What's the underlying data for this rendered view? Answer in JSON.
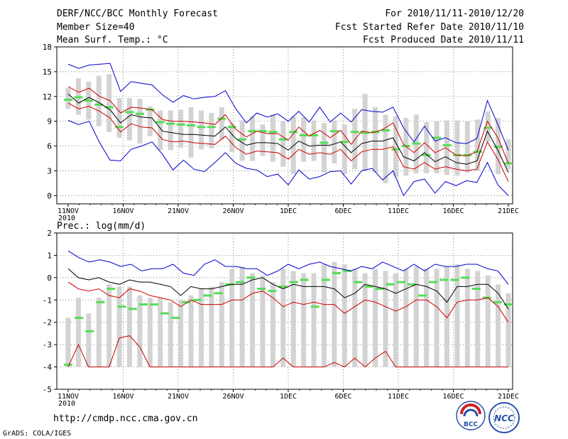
{
  "header": {
    "title": "DERF/NCC/BCC Monthly Forecast",
    "member_size": "Member Size=40",
    "variable": "Mean Surf. Temp.: °C",
    "period": "For 2010/11/11-2010/12/20",
    "start_date": "Fcst Started Refer Date 2010/11/10",
    "produced_date": "Fcst Produced Date 2010/11/11"
  },
  "footer": {
    "url": "http://cmdp.ncc.cma.gov.cn",
    "credit": "GrADS: COLA/IGES",
    "logo_bcc": "BCC",
    "logo_ncc": "NCC"
  },
  "colors": {
    "max_line": "#0000cc",
    "min_line": "#0000cc",
    "mean_line": "#000000",
    "band_line": "#cc0000",
    "climatology_mark": "#55dd55",
    "range_bar": "#d3d3d3"
  },
  "chart_data": [
    {
      "type": "line",
      "title": "Mean Surf. Temp.: °C",
      "x_start": "2010-11-11",
      "x_ticks": [
        "11NOV",
        "16NOV",
        "21NOV",
        "26NOV",
        "1DEC",
        "6DEC",
        "11DEC",
        "16DEC",
        "21DEC"
      ],
      "x_tick_sub": "2010",
      "ylim": [
        -1,
        18
      ],
      "y_ticks": [
        "0",
        "3",
        "6",
        "9",
        "12",
        "15",
        "18"
      ],
      "grid": true,
      "series": [
        {
          "name": "max",
          "color": "#0000cc",
          "values": [
            15.9,
            15.4,
            15.8,
            15.9,
            16.0,
            12.6,
            13.8,
            13.6,
            13.4,
            12.2,
            11.3,
            12.1,
            11.7,
            11.9,
            12.0,
            12.7,
            10.5,
            8.8,
            10.0,
            9.5,
            9.9,
            9.0,
            10.2,
            8.9,
            10.7,
            8.9,
            10.0,
            8.9,
            10.4,
            10.2,
            10.1,
            10.7,
            8.2,
            6.5,
            8.4,
            6.6,
            7.0,
            6.4,
            6.3,
            6.9,
            11.5,
            8.6,
            5.5
          ]
        },
        {
          "name": "upper",
          "color": "#cc0000",
          "values": [
            13.2,
            12.5,
            13.0,
            12.0,
            11.5,
            10.0,
            10.7,
            10.6,
            10.4,
            9.2,
            9.0,
            9.0,
            8.9,
            8.8,
            8.6,
            9.8,
            8.0,
            7.1,
            7.8,
            7.5,
            7.5,
            6.7,
            8.3,
            7.2,
            7.9,
            7.0,
            7.9,
            6.2,
            7.8,
            7.6,
            8.0,
            8.8,
            6.2,
            5.2,
            6.4,
            5.2,
            5.8,
            4.9,
            4.8,
            5.3,
            9.0,
            7.0,
            3.9
          ]
        },
        {
          "name": "mean",
          "color": "#000000",
          "values": [
            12.3,
            11.2,
            11.9,
            11.2,
            10.4,
            8.8,
            9.8,
            9.5,
            9.4,
            7.8,
            7.6,
            7.4,
            7.4,
            7.3,
            7.2,
            8.3,
            6.9,
            6.1,
            6.4,
            6.4,
            6.3,
            5.5,
            6.6,
            6.0,
            6.1,
            6.1,
            6.5,
            5.2,
            6.3,
            6.6,
            6.6,
            7.0,
            4.7,
            4.2,
            5.2,
            4.1,
            4.7,
            4.0,
            3.8,
            4.2,
            7.8,
            5.5,
            2.8
          ]
        },
        {
          "name": "lower",
          "color": "#cc0000",
          "values": [
            11.2,
            10.5,
            10.8,
            10.2,
            9.4,
            7.7,
            8.7,
            8.3,
            8.2,
            6.8,
            6.5,
            6.6,
            6.4,
            6.3,
            6.2,
            7.2,
            5.8,
            5.0,
            5.4,
            5.3,
            5.2,
            4.4,
            5.6,
            5.0,
            5.2,
            5.0,
            5.6,
            4.2,
            5.3,
            5.6,
            5.6,
            5.9,
            3.5,
            3.2,
            4.0,
            3.2,
            3.5,
            3.2,
            3.0,
            3.2,
            6.5,
            4.4,
            1.7
          ]
        },
        {
          "name": "min",
          "color": "#0000cc",
          "values": [
            9.1,
            8.6,
            9.0,
            6.4,
            4.3,
            4.2,
            5.6,
            6.0,
            6.5,
            5.0,
            3.1,
            4.3,
            3.2,
            2.9,
            4.0,
            5.2,
            3.9,
            3.3,
            3.1,
            2.3,
            2.6,
            1.3,
            3.1,
            2.0,
            2.3,
            2.9,
            3.0,
            1.4,
            3.0,
            3.3,
            1.9,
            3.0,
            0.0,
            1.7,
            2.0,
            0.3,
            1.7,
            1.2,
            1.8,
            1.6,
            4.0,
            1.3,
            0.0
          ]
        }
      ],
      "climatology": [
        11.6,
        11.9,
        11.5,
        11.0,
        10.7,
        8.3,
        10.1,
        9.9,
        10.4,
        8.9,
        8.7,
        8.6,
        8.5,
        8.3,
        8.3,
        9.3,
        8.3,
        6.8,
        7.8,
        7.8,
        7.7,
        6.8,
        7.7,
        7.3,
        7.3,
        6.4,
        7.8,
        6.5,
        7.7,
        7.6,
        7.7,
        7.9,
        5.6,
        6.0,
        6.3,
        4.9,
        7.0,
        6.1,
        4.9,
        4.9,
        5.3,
        8.2,
        5.9,
        3.9
      ],
      "range_bars": [
        [
          10.5,
          13.0
        ],
        [
          9.8,
          14.2
        ],
        [
          9.2,
          13.8
        ],
        [
          8.4,
          14.5
        ],
        [
          7.7,
          14.7
        ],
        [
          7.0,
          11.8
        ],
        [
          6.7,
          11.8
        ],
        [
          6.3,
          11.7
        ],
        [
          7.2,
          10.8
        ],
        [
          5.5,
          10.3
        ],
        [
          5.5,
          10.3
        ],
        [
          5.8,
          10.4
        ],
        [
          4.6,
          10.7
        ],
        [
          5.6,
          10.3
        ],
        [
          5.7,
          10.0
        ],
        [
          6.8,
          10.7
        ],
        [
          5.3,
          8.8
        ],
        [
          4.2,
          9.1
        ],
        [
          4.2,
          9.6
        ],
        [
          4.8,
          8.6
        ],
        [
          4.1,
          9.8
        ],
        [
          3.5,
          9.0
        ],
        [
          2.6,
          9.6
        ],
        [
          4.1,
          9.5
        ],
        [
          4.2,
          9.1
        ],
        [
          2.8,
          8.8
        ],
        [
          3.9,
          9.1
        ],
        [
          2.6,
          8.6
        ],
        [
          3.2,
          10.5
        ],
        [
          3.0,
          12.3
        ],
        [
          2.8,
          10.7
        ],
        [
          1.5,
          9.8
        ],
        [
          2.3,
          9.6
        ],
        [
          2.4,
          9.4
        ],
        [
          2.7,
          9.8
        ],
        [
          2.7,
          8.9
        ],
        [
          2.7,
          9.0
        ],
        [
          2.5,
          9.1
        ],
        [
          2.4,
          9.1
        ],
        [
          2.8,
          9.0
        ],
        [
          3.0,
          9.2
        ],
        [
          6.5,
          10.2
        ],
        [
          2.6,
          9.4
        ],
        [
          3.2,
          6.8
        ]
      ]
    },
    {
      "type": "line",
      "title": "Prec.: log(mm/d)",
      "x_start": "2010-11-11",
      "x_ticks": [
        "11NOV",
        "16NOV",
        "21NOV",
        "26NOV",
        "1DEC",
        "6DEC",
        "11DEC",
        "16DEC",
        "21DEC"
      ],
      "x_tick_sub": "2010",
      "ylim": [
        -5,
        2
      ],
      "y_ticks": [
        "-5",
        "-4",
        "-3",
        "-2",
        "-1",
        "0",
        "1",
        "2"
      ],
      "grid": true,
      "series": [
        {
          "name": "max",
          "color": "#0000cc",
          "values": [
            1.2,
            0.9,
            0.7,
            0.8,
            0.7,
            0.5,
            0.6,
            0.3,
            0.4,
            0.4,
            0.6,
            0.2,
            0.1,
            0.6,
            0.8,
            0.5,
            0.5,
            0.4,
            0.4,
            0.1,
            0.3,
            0.6,
            0.4,
            0.6,
            0.7,
            0.5,
            0.4,
            0.3,
            0.5,
            0.4,
            0.7,
            0.5,
            0.3,
            0.6,
            0.3,
            0.6,
            0.5,
            0.5,
            0.6,
            0.6,
            0.4,
            0.3,
            -0.3
          ]
        },
        {
          "name": "mean",
          "color": "#000000",
          "values": [
            0.4,
            0.0,
            -0.1,
            0.0,
            -0.2,
            -0.3,
            -0.1,
            -0.2,
            -0.2,
            -0.3,
            -0.4,
            -0.8,
            -0.4,
            -0.5,
            -0.5,
            -0.4,
            -0.3,
            -0.3,
            -0.1,
            0.0,
            -0.3,
            -0.5,
            -0.3,
            -0.4,
            -0.4,
            -0.4,
            -0.5,
            -0.9,
            -0.7,
            -0.3,
            -0.4,
            -0.5,
            -0.7,
            -0.5,
            -0.3,
            -0.4,
            -0.6,
            -1.1,
            -0.4,
            -0.4,
            -0.3,
            -0.3,
            -0.7,
            -1.4
          ]
        },
        {
          "name": "lower_band",
          "color": "#cc0000",
          "values": [
            -0.2,
            -0.5,
            -0.6,
            -0.5,
            -0.8,
            -0.9,
            -0.5,
            -0.6,
            -0.8,
            -0.9,
            -1.0,
            -1.3,
            -1.0,
            -1.2,
            -1.2,
            -1.2,
            -1.0,
            -1.0,
            -0.7,
            -0.6,
            -0.9,
            -1.3,
            -1.1,
            -1.2,
            -1.1,
            -1.2,
            -1.2,
            -1.6,
            -1.3,
            -1.0,
            -1.1,
            -1.3,
            -1.5,
            -1.3,
            -1.0,
            -1.0,
            -1.3,
            -1.8,
            -1.1,
            -1.0,
            -1.0,
            -0.9,
            -1.3,
            -2.0
          ]
        },
        {
          "name": "min_low",
          "color": "#cc0000",
          "values": [
            -4.0,
            -3.0,
            -4.0,
            -4.0,
            -4.0,
            -2.7,
            -2.6,
            -3.1,
            -4.0,
            -4.0,
            -4.0,
            -4.0,
            -4.0,
            -4.0,
            -4.0,
            -4.0,
            -4.0,
            -4.0,
            -4.0,
            -4.0,
            -4.0,
            -3.6,
            -4.0,
            -4.0,
            -4.0,
            -4.0,
            -3.8,
            -4.0,
            -3.6,
            -4.0,
            -3.6,
            -3.3,
            -4.0,
            -4.0,
            -4.0,
            -4.0,
            -4.0,
            -4.0,
            -4.0,
            -4.0,
            -4.0,
            -4.0,
            -4.0,
            -4.0
          ]
        }
      ],
      "climatology": [
        -3.9,
        -1.8,
        -2.4,
        -1.1,
        -0.5,
        -1.3,
        -1.4,
        -1.2,
        -1.2,
        -1.6,
        -1.8,
        -1.1,
        -1.0,
        -0.8,
        -0.7,
        -0.3,
        -0.2,
        0.0,
        -0.5,
        -0.6,
        -0.4,
        -0.2,
        -0.1,
        -1.3,
        -0.1,
        0.2,
        0.3,
        -0.2,
        -0.4,
        -0.5,
        -0.3,
        -0.2,
        -0.3,
        -0.8,
        -0.2,
        -0.1,
        -0.1,
        0.0,
        -0.5,
        -0.9,
        -1.1,
        -1.2
      ],
      "range_bars": [
        [
          -4.0,
          -1.8
        ],
        [
          -4.0,
          -0.9
        ],
        [
          -4.0,
          -1.6
        ],
        [
          -4.0,
          -0.9
        ],
        [
          -4.0,
          -0.3
        ],
        [
          -4.0,
          -0.4
        ],
        [
          -4.0,
          -0.4
        ],
        [
          -4.0,
          -0.8
        ],
        [
          -4.0,
          -0.9
        ],
        [
          -4.0,
          -0.9
        ],
        [
          -4.0,
          -1.1
        ],
        [
          -4.0,
          -1.0
        ],
        [
          -4.0,
          -0.8
        ],
        [
          -4.0,
          -0.5
        ],
        [
          -4.0,
          -0.4
        ],
        [
          -4.0,
          -0.2
        ],
        [
          -4.0,
          0.4
        ],
        [
          -4.0,
          0.5
        ],
        [
          -4.0,
          0.2
        ],
        [
          -4.0,
          0.1
        ],
        [
          -4.0,
          -0.2
        ],
        [
          -4.0,
          0.4
        ],
        [
          -4.0,
          0.3
        ],
        [
          -4.0,
          0.2
        ],
        [
          -4.0,
          0.2
        ],
        [
          -4.0,
          0.6
        ],
        [
          -4.0,
          0.7
        ],
        [
          -4.0,
          0.6
        ],
        [
          -4.0,
          0.4
        ],
        [
          -4.0,
          0.2
        ],
        [
          -4.0,
          0.4
        ],
        [
          -4.0,
          0.3
        ],
        [
          -4.0,
          0.2
        ],
        [
          -4.0,
          0.4
        ],
        [
          -4.0,
          0.5
        ],
        [
          -4.0,
          0.4
        ],
        [
          -4.0,
          0.4
        ],
        [
          -4.0,
          0.5
        ],
        [
          -4.0,
          0.6
        ],
        [
          -4.0,
          0.4
        ],
        [
          -4.0,
          0.3
        ],
        [
          -4.0,
          0.1
        ],
        [
          -4.0,
          -0.3
        ],
        [
          -4.0,
          -0.7
        ]
      ]
    }
  ]
}
